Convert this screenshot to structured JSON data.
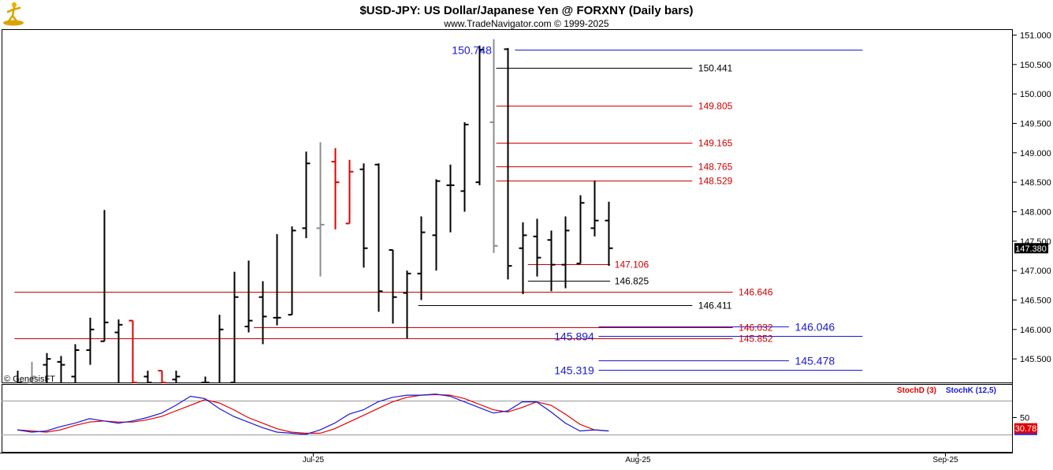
{
  "header": {
    "title": "$USD-JPY:  US Dollar/Japanese Yen @ FORXNY  (Daily bars)",
    "subtitle": "www.TradeNavigator.com © 1999-2025",
    "watermark": "© GenesisFT",
    "logo_icon": "genesis-figure-icon"
  },
  "colors": {
    "bar_black": "#000000",
    "bar_gray": "#8c8c8c",
    "bar_red": "#e00000",
    "line_red": "#cc0000",
    "line_blue": "#1a1ad6",
    "line_black": "#000000",
    "stoch_d": "#e00000",
    "stoch_k": "#1a1ad6",
    "last_price_bg": "#000000",
    "stoch_value_bg": "#e00000"
  },
  "chart_data": {
    "type": "ohlc",
    "instrument": "$USD-JPY",
    "ylim": [
      145.1,
      151.1
    ],
    "y_ticks": [
      "151.000",
      "150.500",
      "150.000",
      "149.500",
      "149.000",
      "148.500",
      "148.000",
      "147.500",
      "147.000",
      "146.500",
      "146.000",
      "145.500"
    ],
    "x_ticks": [
      {
        "label": "Jul-25",
        "bar": 20.5
      },
      {
        "label": "Aug-25",
        "bar": 43
      },
      {
        "label": "Sep-25",
        "bar": 64.3
      }
    ],
    "bars": [
      {
        "o": 145.05,
        "h": 145.3,
        "l": 145.0,
        "c": 145.1,
        "color": "black"
      },
      {
        "o": 145.1,
        "h": 145.45,
        "l": 145.0,
        "c": 145.2,
        "color": "gray"
      },
      {
        "o": 145.4,
        "h": 145.6,
        "l": 145.1,
        "c": 145.5,
        "color": "black"
      },
      {
        "o": 145.45,
        "h": 145.55,
        "l": 145.0,
        "c": 145.4,
        "color": "black"
      },
      {
        "o": 145.2,
        "h": 145.75,
        "l": 145.0,
        "c": 145.65,
        "color": "black"
      },
      {
        "o": 145.65,
        "h": 146.2,
        "l": 145.4,
        "c": 146.0,
        "color": "black"
      },
      {
        "o": 145.8,
        "h": 148.03,
        "l": 145.8,
        "c": 146.12,
        "color": "black"
      },
      {
        "o": 145.95,
        "h": 146.17,
        "l": 145.05,
        "c": 146.08,
        "color": "black"
      },
      {
        "o": 146.15,
        "h": 146.15,
        "l": 145.05,
        "c": 145.1,
        "color": "red"
      },
      {
        "o": 145.2,
        "h": 145.3,
        "l": 145.0,
        "c": 145.1,
        "color": "black"
      },
      {
        "o": 145.3,
        "h": 145.3,
        "l": 145.05,
        "c": 145.1,
        "color": "red"
      },
      {
        "o": 145.15,
        "h": 145.3,
        "l": 145.0,
        "c": 145.2,
        "color": "black"
      },
      {
        "o": 145.05,
        "h": 145.1,
        "l": 145.0,
        "c": 145.05,
        "color": "black"
      },
      {
        "o": 145.1,
        "h": 145.2,
        "l": 145.0,
        "c": 145.1,
        "color": "black"
      },
      {
        "o": 145.05,
        "h": 146.25,
        "l": 145.05,
        "c": 146.0,
        "color": "black"
      },
      {
        "o": 145.1,
        "h": 146.98,
        "l": 145.05,
        "c": 146.55,
        "color": "black"
      },
      {
        "o": 146.05,
        "h": 147.17,
        "l": 145.95,
        "c": 146.15,
        "color": "black"
      },
      {
        "o": 146.55,
        "h": 146.82,
        "l": 145.75,
        "c": 146.22,
        "color": "black"
      },
      {
        "o": 146.2,
        "h": 147.62,
        "l": 146.07,
        "c": 146.2,
        "color": "black"
      },
      {
        "o": 146.25,
        "h": 147.75,
        "l": 146.25,
        "c": 147.68,
        "color": "black"
      },
      {
        "o": 147.72,
        "h": 149.02,
        "l": 147.55,
        "c": 148.82,
        "color": "black"
      },
      {
        "o": 147.72,
        "h": 149.18,
        "l": 146.9,
        "c": 147.78,
        "color": "gray"
      },
      {
        "o": 148.85,
        "h": 149.08,
        "l": 147.7,
        "c": 148.5,
        "color": "red"
      },
      {
        "o": 147.8,
        "h": 148.88,
        "l": 147.8,
        "c": 148.68,
        "color": "red"
      },
      {
        "o": 148.72,
        "h": 148.82,
        "l": 147.05,
        "c": 147.38,
        "color": "black"
      },
      {
        "o": 148.8,
        "h": 148.82,
        "l": 146.3,
        "c": 146.65,
        "color": "black"
      },
      {
        "o": 147.35,
        "h": 147.35,
        "l": 146.1,
        "c": 146.55,
        "color": "black"
      },
      {
        "o": 146.62,
        "h": 147.0,
        "l": 145.85,
        "c": 146.95,
        "color": "black"
      },
      {
        "o": 146.95,
        "h": 147.92,
        "l": 146.5,
        "c": 147.65,
        "color": "black"
      },
      {
        "o": 147.6,
        "h": 148.55,
        "l": 147.0,
        "c": 148.52,
        "color": "black"
      },
      {
        "o": 148.45,
        "h": 148.8,
        "l": 147.65,
        "c": 148.45,
        "color": "black"
      },
      {
        "o": 148.35,
        "h": 149.52,
        "l": 148.0,
        "c": 149.48,
        "color": "black"
      },
      {
        "o": 148.5,
        "h": 150.82,
        "l": 148.45,
        "c": 150.75,
        "color": "black"
      },
      {
        "o": 149.52,
        "h": 150.93,
        "l": 147.3,
        "c": 147.42,
        "color": "gray"
      },
      {
        "o": 150.76,
        "h": 150.78,
        "l": 146.85,
        "c": 147.08,
        "color": "black"
      },
      {
        "o": 147.38,
        "h": 147.82,
        "l": 146.6,
        "c": 147.6,
        "color": "black"
      },
      {
        "o": 147.58,
        "h": 147.88,
        "l": 146.9,
        "c": 147.22,
        "color": "black"
      },
      {
        "o": 147.52,
        "h": 147.68,
        "l": 146.65,
        "c": 147.1,
        "color": "black"
      },
      {
        "o": 147.1,
        "h": 147.92,
        "l": 146.7,
        "c": 147.68,
        "color": "black"
      },
      {
        "o": 147.12,
        "h": 148.28,
        "l": 147.12,
        "c": 148.15,
        "color": "black"
      },
      {
        "o": 147.72,
        "h": 148.53,
        "l": 147.58,
        "c": 147.85,
        "color": "black"
      },
      {
        "o": 147.85,
        "h": 148.17,
        "l": 147.08,
        "c": 147.38,
        "color": "black"
      }
    ],
    "levels": [
      {
        "label": "150.748",
        "value": 150.748,
        "color": "blue",
        "from_bar": 34.5,
        "to_bar": 58.6,
        "label_bar": 33,
        "label_anchor": "end",
        "big": true
      },
      {
        "label": "150.441",
        "value": 150.441,
        "color": "black",
        "from_bar": 33.2,
        "to_bar": 46.8,
        "label_bar": 47.1,
        "label_anchor": "start"
      },
      {
        "label": "149.805",
        "value": 149.805,
        "color": "red",
        "from_bar": 33.2,
        "to_bar": 46.8,
        "label_bar": 47.1,
        "label_anchor": "start"
      },
      {
        "label": "149.165",
        "value": 149.165,
        "color": "red",
        "from_bar": 33.2,
        "to_bar": 46.8,
        "label_bar": 47.1,
        "label_anchor": "start"
      },
      {
        "label": "148.765",
        "value": 148.765,
        "color": "red",
        "from_bar": 33.2,
        "to_bar": 46.8,
        "label_bar": 47.1,
        "label_anchor": "start"
      },
      {
        "label": "148.529",
        "value": 148.529,
        "color": "red",
        "from_bar": 33.2,
        "to_bar": 46.8,
        "label_bar": 47.1,
        "label_anchor": "start"
      },
      {
        "label": "147.106",
        "value": 147.106,
        "color": "red",
        "from_bar": 35.4,
        "to_bar": 41.1,
        "label_bar": 41.3,
        "label_anchor": "start"
      },
      {
        "label": "146.825",
        "value": 146.825,
        "color": "black",
        "from_bar": 35.4,
        "to_bar": 41.1,
        "label_bar": 41.3,
        "label_anchor": "start"
      },
      {
        "label": "146.646",
        "value": 146.646,
        "color": "red",
        "from_bar": -0.2,
        "to_bar": 49.6,
        "label_bar": 49.9,
        "label_anchor": "start"
      },
      {
        "label": "146.411",
        "value": 146.411,
        "color": "black",
        "from_bar": 27.8,
        "to_bar": 46.8,
        "label_bar": 47.1,
        "label_anchor": "start"
      },
      {
        "label": "146.032",
        "value": 146.032,
        "color": "red",
        "from_bar": 16.4,
        "to_bar": 49.6,
        "label_bar": 49.9,
        "label_anchor": "start"
      },
      {
        "label": "146.046",
        "value": 146.046,
        "color": "blue",
        "from_bar": 40.3,
        "to_bar": 53.5,
        "label_bar": 53.8,
        "label_anchor": "start",
        "big": true
      },
      {
        "label": "145.894",
        "value": 145.894,
        "color": "blue",
        "from_bar": 40.3,
        "to_bar": 58.6,
        "label_bar": 40.1,
        "label_anchor": "end",
        "big": true
      },
      {
        "label": "145.852",
        "value": 145.852,
        "color": "red",
        "from_bar": -0.2,
        "to_bar": 49.6,
        "label_bar": 49.9,
        "label_anchor": "start"
      },
      {
        "label": "145.478",
        "value": 145.478,
        "color": "blue",
        "from_bar": 40.3,
        "to_bar": 53.5,
        "label_bar": 53.8,
        "label_anchor": "start",
        "big": true
      },
      {
        "label": "145.319",
        "value": 145.319,
        "color": "blue",
        "from_bar": 40.3,
        "to_bar": 58.6,
        "label_bar": 40.1,
        "label_anchor": "end",
        "big": true
      }
    ],
    "last_price": "147.380",
    "stochastic": {
      "legend_d": "StochD (3)",
      "legend_k": "StochK (12,5)",
      "ylim": [
        0,
        100
      ],
      "y_tick": "50",
      "ref_lines": [
        80,
        20
      ],
      "last_value": "30.78",
      "k_values": [
        28,
        24,
        26,
        34,
        40,
        48,
        44,
        40,
        44,
        50,
        58,
        72,
        88,
        84,
        66,
        52,
        42,
        32,
        24,
        22,
        20,
        28,
        40,
        56,
        64,
        78,
        86,
        90,
        90,
        92,
        88,
        78,
        68,
        58,
        62,
        78,
        78,
        60,
        40,
        26,
        28,
        26
      ],
      "d_values": [
        28,
        26,
        24,
        28,
        36,
        42,
        44,
        42,
        42,
        46,
        52,
        62,
        72,
        82,
        76,
        64,
        50,
        40,
        30,
        24,
        22,
        22,
        30,
        42,
        54,
        66,
        78,
        86,
        90,
        91,
        90,
        84,
        74,
        64,
        60,
        68,
        78,
        72,
        56,
        38,
        28,
        26
      ]
    }
  }
}
